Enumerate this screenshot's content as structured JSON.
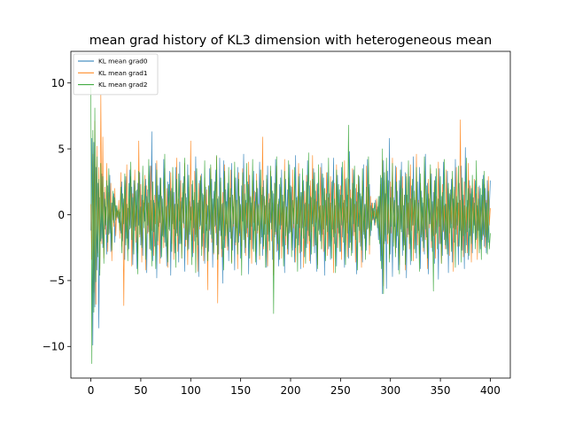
{
  "chart_data": {
    "type": "line",
    "title": "mean grad history of KL3 dimension with heterogeneous mean",
    "xlabel": "",
    "ylabel": "",
    "xlim": [
      -20,
      420
    ],
    "ylim": [
      -12.4,
      12.4
    ],
    "x_ticks": [
      0,
      50,
      100,
      150,
      200,
      250,
      300,
      350,
      400
    ],
    "y_ticks": [
      -10,
      -5,
      0,
      5,
      10
    ],
    "grid": false,
    "legend": "top-left",
    "x_range": [
      0,
      400
    ],
    "series": [
      {
        "name": "KL mean grad0",
        "color": "#1f77b4",
        "values": [
          -1.2,
          5.8,
          -9.9,
          5.5,
          -7.0,
          3.6,
          -4.2,
          2.4,
          -8.6,
          1.3,
          -2.0,
          3.1,
          -2.5,
          1.7,
          -1.1,
          0.6,
          -3.0,
          2.2,
          -1.5,
          3.0,
          -2.8,
          0.9,
          -0.4,
          1.6,
          -2.1,
          0.7,
          -0.2,
          0.3,
          -0.6,
          0.2,
          -1.4,
          2.5,
          -2.0,
          1.2,
          -3.4,
          2.9,
          -1.8,
          0.5,
          -2.6,
          3.4,
          -1.0,
          2.1,
          -3.8,
          2.6,
          -1.2,
          1.8,
          -4.1,
          2.4,
          -0.8,
          3.2,
          -2.3,
          1.5,
          -3.1,
          0.9,
          -0.5,
          2.7,
          -4.4,
          1.9,
          -1.3,
          3.7,
          -2.7,
          6.3,
          -3.5,
          1.1,
          -2.4,
          3.9,
          -4.8,
          2.2,
          -0.9,
          2.8,
          -3.3,
          1.4,
          -1.6,
          4.2,
          -2.1,
          0.6,
          -3.9,
          2.5,
          -1.1,
          3.3,
          -4.6,
          2.0,
          -0.7,
          1.7,
          -2.9,
          3.6,
          -1.4,
          0.8,
          -3.6,
          4.0,
          -2.2,
          1.3,
          -0.6,
          2.9,
          -4.3,
          1.6,
          -1.9,
          3.8,
          -2.6,
          1.0,
          -0.4,
          2.3,
          -3.2,
          1.1,
          -2.0,
          4.4,
          -1.7,
          0.9,
          -4.7,
          2.6,
          -0.8,
          3.1,
          -2.4,
          1.5,
          -3.7,
          2.1,
          -1.2,
          0.7,
          -2.8,
          3.5,
          -1.5,
          2.7,
          -4.0,
          1.8,
          -0.9,
          3.4,
          -2.3,
          1.2,
          -3.0,
          4.3,
          -1.6,
          0.8,
          -5.2,
          4.1,
          -2.5,
          1.9,
          -0.7,
          2.4,
          -3.5,
          1.3,
          -1.8,
          3.9,
          -2.7,
          0.6,
          -4.2,
          2.8,
          -1.0,
          3.6,
          -2.1,
          1.4,
          -3.3,
          2.2,
          -0.5,
          4.6,
          -2.9,
          1.1,
          -1.4,
          2.5,
          -4.5,
          3.0,
          -1.9,
          0.9,
          -2.6,
          3.3,
          -1.2,
          1.7,
          -3.8,
          2.0,
          -0.8,
          4.0,
          -2.2,
          1.5,
          -3.1,
          2.6,
          -1.5,
          0.7,
          -4.0,
          3.7,
          -2.0,
          1.2,
          -0.6,
          2.9,
          -3.4,
          1.6,
          -1.7,
          4.2,
          -2.8,
          0.8,
          -3.9,
          2.3,
          -1.1,
          3.4,
          -2.4,
          1.0,
          -4.4,
          2.7,
          -0.9,
          1.9,
          -3.0,
          3.8,
          -1.3,
          2.1,
          -2.7,
          0.5,
          -3.6,
          4.5,
          -1.8,
          1.4,
          -2.3,
          3.1,
          -4.1,
          1.7,
          -1.0,
          2.6,
          -3.2,
          0.9,
          -2.5,
          4.1,
          -1.6,
          2.2,
          -3.7,
          1.3,
          -0.7,
          3.5,
          -2.9,
          1.8,
          -4.3,
          2.4,
          -1.2,
          0.6,
          -2.0,
          3.9,
          -1.5,
          2.8,
          -4.6,
          1.1,
          -0.8,
          3.2,
          -2.6,
          1.6,
          -3.4,
          2.5,
          -1.1,
          4.3,
          -2.2,
          0.7,
          -3.9,
          3.0,
          -1.4,
          1.9,
          -2.8,
          3.6,
          -1.7,
          0.9,
          -4.0,
          2.7,
          -0.6,
          1.5,
          -3.3,
          4.8,
          -2.1,
          1.2,
          -2.9,
          3.4,
          -1.3,
          2.0,
          -4.5,
          1.7,
          -0.9,
          2.9,
          -2.4,
          1.4,
          -3.6,
          3.8,
          -1.8,
          0.8,
          -2.7,
          4.2,
          -1.0,
          2.3,
          -1.6,
          0.9,
          -0.4,
          0.5,
          -0.8,
          1.1,
          -0.3,
          0.6,
          -1.9,
          1.4,
          -3.5,
          2.8,
          -6.0,
          4.1,
          -2.2,
          1.6,
          -5.6,
          3.3,
          -1.4,
          5.8,
          -3.0,
          2.1,
          -4.7,
          1.3,
          -0.9,
          3.7,
          -2.5,
          1.8,
          -4.2,
          2.6,
          -1.1,
          4.0,
          -3.1,
          0.7,
          -2.3,
          3.2,
          -4.8,
          1.5,
          -1.5,
          2.9,
          -3.8,
          2.2,
          -0.8,
          4.4,
          -2.6,
          1.1,
          -3.3,
          2.5,
          -1.2,
          3.6,
          -4.1,
          1.8,
          -2.0,
          0.9,
          -3.0,
          4.6,
          -1.7,
          2.4,
          -4.5,
          1.2,
          -0.7,
          3.1,
          -2.8,
          1.7,
          -3.7,
          2.9,
          -1.4,
          0.6,
          -4.9,
          3.5,
          -2.2,
          1.4,
          -3.1,
          4.0,
          -1.9,
          0.8,
          -2.6,
          3.3,
          -4.4,
          1.6,
          -1.0,
          2.7,
          -3.6,
          1.2,
          -2.1,
          4.2,
          -1.5,
          0.9,
          -3.8,
          2.4,
          -1.2,
          3.7,
          -2.7,
          1.5,
          -4.1,
          5.1,
          -2.3,
          1.1,
          -3.4,
          2.6,
          -1.6,
          2.0,
          -2.9,
          1.3,
          -0.8,
          2.6,
          -1.9,
          0.7,
          -1.2,
          2.2,
          -2.6,
          1.5,
          -1.9,
          3.0,
          -2.4,
          2.0,
          -2.9,
          2.6,
          -2.1,
          0.4,
          2.6
        ]
      },
      {
        "name": "KL mean grad1",
        "color": "#ff7f0e",
        "values": [
          0.8,
          -3.4,
          4.6,
          -5.9,
          7.1,
          -6.8,
          5.2,
          -2.9,
          3.6,
          -4.1,
          9.1,
          -2.2,
          5.9,
          -3.3,
          2.1,
          -1.5,
          3.9,
          -2.8,
          1.7,
          -1.1,
          2.4,
          -3.5,
          1.4,
          -0.9,
          2.0,
          -1.6,
          0.5,
          -0.3,
          1.1,
          -1.8,
          3.2,
          -2.4,
          0.9,
          -6.9,
          2.6,
          -1.3,
          3.8,
          -2.7,
          1.2,
          -0.8,
          2.9,
          -3.9,
          1.6,
          -1.0,
          3.4,
          -2.1,
          0.7,
          -2.9,
          5.6,
          -1.7,
          2.3,
          -3.6,
          1.1,
          -0.6,
          3.0,
          -4.2,
          2.2,
          -1.4,
          0.9,
          -2.6,
          3.7,
          -1.2,
          2.5,
          -3.1,
          1.5,
          -0.7,
          4.1,
          -2.3,
          1.0,
          -3.7,
          2.7,
          -1.9,
          0.6,
          -2.5,
          3.5,
          -1.1,
          2.0,
          -4.0,
          1.3,
          -0.9,
          3.2,
          -2.2,
          1.8,
          -3.4,
          0.8,
          -1.6,
          4.3,
          -2.8,
          1.2,
          -0.5,
          2.6,
          -3.3,
          1.7,
          -1.0,
          3.9,
          -2.4,
          0.7,
          -3.8,
          2.1,
          -1.3,
          5.6,
          -2.0,
          1.4,
          -2.9,
          3.3,
          -1.5,
          0.9,
          -4.3,
          2.4,
          -1.1,
          3.0,
          -2.6,
          1.0,
          -3.5,
          2.8,
          -0.7,
          1.9,
          -5.7,
          2.2,
          -1.2,
          3.6,
          -2.1,
          0.8,
          -3.0,
          1.6,
          -1.4,
          4.4,
          -6.7,
          1.3,
          -0.8,
          2.5,
          -3.2,
          1.7,
          -1.9,
          3.8,
          -2.5,
          0.6,
          -2.7,
          2.0,
          -1.0,
          3.4,
          -3.6,
          1.5,
          -0.9,
          2.9,
          -2.3,
          1.1,
          -4.1,
          3.2,
          -1.6,
          0.7,
          -2.4,
          3.5,
          -1.2,
          2.3,
          -3.1,
          0.9,
          -1.7,
          4.0,
          -2.2,
          1.4,
          -3.7,
          2.6,
          -0.6,
          1.8,
          -2.8,
          3.1,
          -1.4,
          0.8,
          -3.4,
          2.2,
          -1.1,
          5.9,
          -2.6,
          1.2,
          -0.7,
          2.7,
          -3.9,
          1.6,
          -1.3,
          3.3,
          -2.0,
          0.9,
          -4.6,
          2.4,
          -1.5,
          3.7,
          -2.7,
          1.0,
          -0.8,
          2.1,
          -3.3,
          1.5,
          -1.8,
          4.2,
          -2.3,
          0.6,
          -3.0,
          2.8,
          -1.2,
          1.7,
          -2.5,
          3.4,
          -1.0,
          2.2,
          -3.6,
          1.1,
          -0.7,
          3.9,
          -2.9,
          1.4,
          -1.6,
          2.5,
          -4.0,
          1.8,
          -0.9,
          3.0,
          -2.2,
          0.8,
          -3.5,
          2.6,
          -1.3,
          4.5,
          -2.4,
          1.2,
          -0.6,
          2.3,
          -3.8,
          1.6,
          -1.1,
          3.6,
          -2.6,
          0.7,
          -2.8,
          2.0,
          -1.5,
          3.2,
          -3.1,
          1.3,
          -0.8,
          2.9,
          -2.0,
          1.0,
          -4.4,
          2.4,
          -1.4,
          3.8,
          -2.5,
          0.9,
          -1.7,
          2.2,
          -3.4,
          1.5,
          -1.0,
          4.1,
          -2.3,
          0.6,
          -3.2,
          2.7,
          -1.2,
          1.9,
          -2.7,
          3.5,
          -1.6,
          0.8,
          -3.6,
          2.3,
          -0.9,
          3.0,
          -2.1,
          1.2,
          -4.0,
          2.6,
          -1.3,
          0.7,
          -2.4,
          3.7,
          -1.1,
          2.1,
          -3.0,
          1.4,
          -0.6,
          0.9,
          -0.4,
          0.3,
          -0.8,
          1.2,
          -0.5,
          0.7,
          -1.6,
          2.3,
          -3.1,
          4.2,
          -5.4,
          2.6,
          -1.5,
          3.4,
          -2.2,
          0.8,
          -3.3,
          2.5,
          -1.4,
          4.3,
          -2.1,
          1.0,
          -2.9,
          3.6,
          -1.3,
          0.7,
          -3.8,
          2.2,
          -1.0,
          2.9,
          -2.4,
          1.5,
          -4.2,
          3.1,
          -1.7,
          0.9,
          -2.6,
          3.8,
          -1.2,
          2.0,
          -3.5,
          1.3,
          -0.8,
          4.6,
          -2.3,
          1.1,
          -3.0,
          2.4,
          -1.5,
          0.6,
          -2.8,
          3.3,
          -1.9,
          1.2,
          -4.1,
          2.7,
          -1.0,
          3.5,
          -2.5,
          0.8,
          -1.6,
          2.6,
          -3.3,
          1.4,
          -0.9,
          4.0,
          -2.2,
          1.1,
          -3.7,
          2.3,
          -1.3,
          0.7,
          -2.6,
          3.4,
          -1.8,
          2.0,
          -3.1,
          1.5,
          -0.7,
          2.8,
          -4.3,
          1.9,
          -1.1,
          3.6,
          -2.4,
          0.9,
          -1.5,
          7.2,
          -2.7,
          1.2,
          -3.2,
          2.5,
          -1.4,
          0.6,
          -2.9,
          3.9,
          -1.0,
          2.2,
          -3.6,
          1.3,
          -0.8,
          2.7,
          -2.1,
          1.6,
          -3.4,
          2.1,
          -1.2,
          0.6,
          -2.0,
          1.4,
          -1.6,
          2.3,
          -2.5,
          1.1,
          -1.9,
          2.9,
          -0.8,
          0.5
        ]
      },
      {
        "name": "KL mean grad2",
        "color": "#2ca02c",
        "values": [
          9.7,
          -11.3,
          6.4,
          -7.4,
          8.1,
          -5.1,
          4.4,
          -3.2,
          2.7,
          -4.6,
          3.9,
          -1.8,
          2.9,
          -3.7,
          1.2,
          -0.8,
          2.6,
          -2.1,
          3.5,
          -1.4,
          0.9,
          -2.7,
          1.8,
          -0.6,
          1.3,
          -0.4,
          0.7,
          -0.2,
          0.4,
          -1.2,
          2.1,
          -2.9,
          1.6,
          -0.7,
          3.1,
          -2.3,
          0.8,
          -3.5,
          2.4,
          -1.1,
          4.0,
          -1.9,
          1.3,
          -3.0,
          2.6,
          -0.9,
          1.9,
          -4.5,
          3.3,
          -1.5,
          0.6,
          -2.5,
          3.7,
          -1.0,
          2.2,
          -3.4,
          1.4,
          -0.8,
          4.2,
          -2.6,
          1.1,
          -3.9,
          2.5,
          -1.3,
          0.9,
          -4.1,
          3.4,
          -2.0,
          1.5,
          -0.6,
          2.8,
          -3.2,
          1.2,
          -1.7,
          4.6,
          -2.4,
          0.7,
          -3.6,
          2.3,
          -1.2,
          1.8,
          -2.8,
          3.6,
          -1.1,
          0.8,
          -4.0,
          2.7,
          -1.6,
          3.1,
          -2.2,
          1.0,
          -3.3,
          2.4,
          -0.7,
          4.3,
          -1.9,
          1.3,
          -2.7,
          3.0,
          -1.5,
          0.6,
          -3.8,
          2.6,
          -1.0,
          1.7,
          -4.4,
          3.5,
          -2.3,
          1.1,
          -0.9,
          2.9,
          -3.1,
          1.6,
          -1.4,
          4.1,
          -2.5,
          0.8,
          -3.5,
          2.2,
          -1.1,
          3.8,
          -1.8,
          1.2,
          -2.9,
          2.5,
          -0.8,
          4.5,
          -3.4,
          1.4,
          -1.2,
          2.8,
          -2.6,
          0.9,
          -4.2,
          3.3,
          -1.6,
          1.0,
          -2.4,
          3.6,
          -1.3,
          2.0,
          -3.7,
          1.5,
          -0.7,
          4.0,
          -2.1,
          1.1,
          -3.0,
          2.7,
          -1.4,
          0.8,
          -4.6,
          3.2,
          -1.9,
          1.6,
          -2.5,
          3.9,
          -1.0,
          2.3,
          -3.3,
          1.3,
          -0.9,
          4.2,
          -2.8,
          1.0,
          -3.6,
          2.6,
          -1.2,
          0.7,
          -3.1,
          3.4,
          -1.7,
          2.1,
          -2.4,
          1.4,
          -4.0,
          3.0,
          -1.5,
          0.9,
          -2.7,
          3.7,
          -1.1,
          1.8,
          -7.5,
          2.4,
          -1.3,
          4.4,
          -2.2,
          1.2,
          -3.4,
          2.8,
          -0.8,
          1.5,
          -3.9,
          3.3,
          -1.6,
          0.6,
          -2.6,
          4.1,
          -1.4,
          2.2,
          -3.2,
          1.1,
          -0.7,
          3.6,
          -2.5,
          1.3,
          -4.3,
          2.9,
          -1.0,
          1.7,
          -2.8,
          3.5,
          -1.8,
          0.8,
          -3.7,
          2.5,
          -1.2,
          4.7,
          -2.0,
          1.4,
          -3.0,
          2.7,
          -0.9,
          3.2,
          -2.3,
          1.0,
          -4.1,
          3.8,
          -1.5,
          0.7,
          -2.6,
          3.1,
          -1.1,
          2.0,
          -3.5,
          1.6,
          -1.3,
          4.3,
          -2.4,
          0.9,
          -3.3,
          2.6,
          -1.7,
          1.2,
          -4.4,
          3.4,
          -1.0,
          2.3,
          -2.8,
          1.5,
          -0.8,
          4.0,
          -2.1,
          1.1,
          -3.8,
          2.8,
          -1.4,
          6.8,
          -2.5,
          1.3,
          -3.1,
          2.4,
          -0.7,
          3.7,
          -1.9,
          1.0,
          -4.2,
          3.0,
          -1.2,
          1.6,
          -2.7,
          3.5,
          -1.5,
          0.8,
          -3.4,
          2.1,
          -1.1,
          4.4,
          -2.3,
          0.7,
          -1.2,
          0.5,
          -0.3,
          0.9,
          -0.6,
          0.4,
          -1.0,
          1.4,
          -2.2,
          3.0,
          -4.1,
          5.0,
          -6.0,
          3.2,
          -2.0,
          4.3,
          -1.5,
          2.6,
          -3.6,
          1.3,
          -0.9,
          3.9,
          -2.4,
          1.1,
          -3.2,
          2.5,
          -1.6,
          0.7,
          -4.5,
          3.4,
          -1.3,
          2.0,
          -2.7,
          1.5,
          -3.8,
          2.9,
          -1.0,
          4.1,
          -2.2,
          1.2,
          -3.5,
          2.7,
          -0.8,
          1.8,
          -2.9,
          3.6,
          -1.4,
          0.9,
          -4.3,
          3.1,
          -1.7,
          1.3,
          -2.5,
          4.4,
          -1.1,
          2.2,
          -3.3,
          1.6,
          -0.7,
          3.8,
          -2.0,
          1.0,
          -5.8,
          2.6,
          -1.5,
          3.5,
          -2.6,
          1.2,
          -0.9,
          2.9,
          -3.7,
          1.7,
          -1.2,
          4.2,
          -2.3,
          0.8,
          -3.0,
          2.4,
          -1.4,
          1.9,
          -2.8,
          3.3,
          -1.0,
          2.1,
          -4.0,
          1.4,
          -0.8,
          3.7,
          -2.4,
          1.1,
          -3.6,
          2.8,
          -1.6,
          0.7,
          -2.9,
          4.3,
          -1.3,
          2.0,
          -3.1,
          1.6,
          -2.2,
          3.0,
          -1.4,
          0.9,
          -2.6,
          4.1,
          -1.8,
          1.2,
          -2.9,
          2.0,
          -3.4,
          2.7,
          -1.5,
          3.3,
          -1.7,
          0.9,
          -3.0,
          1.8,
          -2.6,
          -1.4
        ]
      }
    ]
  }
}
